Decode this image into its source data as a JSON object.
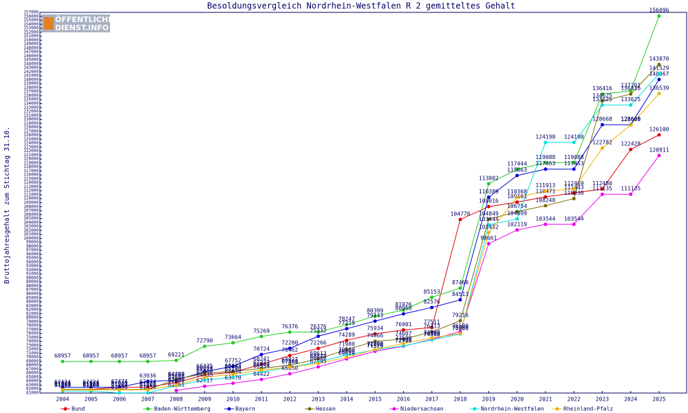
{
  "chart_data": {
    "type": "line",
    "title": "Besoldungsvergleich Nordrhein-Westfalen R 2 gemitteltes Gehalt",
    "y_label": "Bruttojahresgehalt zum Stichtag 31.10.",
    "watermark": [
      "ÖFFENTLICHER",
      "DIENST.INFO"
    ],
    "categories": [
      "2004",
      "2005",
      "2006",
      "2007",
      "2008",
      "2009",
      "2010",
      "2011",
      "2012",
      "2013",
      "2014",
      "2015",
      "2016",
      "2017",
      "2018",
      "2019",
      "2020",
      "2021",
      "2022",
      "2023",
      "2024",
      "2025"
    ],
    "ylim": [
      61000,
      157000
    ],
    "yticks": [
      61000,
      62000,
      63000,
      64000,
      65000,
      66000,
      67000,
      68000,
      69000,
      70000,
      71000,
      72000,
      73000,
      74000,
      75000,
      76000,
      77000,
      78000,
      79000,
      80000,
      81000,
      82000,
      83000,
      84000,
      85000,
      86000,
      87000,
      88000,
      89000,
      90000,
      91000,
      92000,
      93000,
      94000,
      95000,
      96000,
      97000,
      98000,
      99000,
      100000,
      101000,
      102000,
      103000,
      104000,
      105000,
      106000,
      107000,
      108000,
      109000,
      110000,
      111000,
      112000,
      113000,
      114000,
      115000,
      116000,
      117000,
      118000,
      119000,
      120000,
      121000,
      122000,
      123000,
      124000,
      125000,
      126000,
      127000,
      128000,
      129000,
      130000,
      131000,
      132000,
      133000,
      134000,
      135000,
      136000,
      137000,
      138000,
      139000,
      140000,
      141000,
      142000,
      143000,
      144000,
      145000,
      146000,
      147000,
      148000,
      149000,
      150000,
      151000,
      152000,
      153000,
      154000,
      155000,
      156000,
      157000
    ],
    "series": [
      {
        "name": "Bund",
        "color": "#e00000",
        "values": [
          61921,
          61921,
          62474,
          62474,
          63680,
          65525,
          66264,
          68241,
          70462,
          72266,
          74289,
          75934,
          76901,
          77511,
          104778,
          108016,
          109161,
          110471,
          111443,
          112480,
          122428,
          126100
        ]
      },
      {
        "name": "Baden-Württemberg",
        "color": "#22cc22",
        "values": [
          68957,
          68957,
          68957,
          68957,
          69221,
          72790,
          73664,
          75269,
          76376,
          76376,
          78247,
          80399,
          81926,
          85153,
          87460,
          113802,
          117444,
          119088,
          119088,
          136416,
          137201,
          156096
        ]
      },
      {
        "name": "Bayern",
        "color": "#0000dd",
        "values": [
          62424,
          62424,
          62474,
          63936,
          64233,
          66375,
          67752,
          70724,
          72280,
          75332,
          77219,
          79143,
          80960,
          82576,
          84513,
          110389,
          115863,
          117463,
          117463,
          128668,
          128668,
          140067
        ]
      },
      {
        "name": "Hessen",
        "color": "#7a6a00",
        "values": [
          61921,
          61921,
          61921,
          61921,
          64400,
          66004,
          66443,
          67223,
          68027,
          69613,
          71980,
          74066,
          74607,
          76413,
          79216,
          104849,
          106754,
          108248,
          110030,
          134625,
          136416,
          143870
        ]
      },
      {
        "name": "Niedersachsen",
        "color": "#ee00ee",
        "values": [
          null,
          null,
          null,
          null,
          61651,
          62717,
          63470,
          64422,
          65850,
          67595,
          69619,
          71526,
          72799,
          74560,
          76500,
          98661,
          102119,
          103544,
          103544,
          111135,
          111135,
          120911
        ]
      },
      {
        "name": "Nordrhein-Westfalen",
        "color": "#00dddd",
        "values": [
          61500,
          61500,
          61056,
          61056,
          62846,
          64235,
          65034,
          66354,
          67481,
          68877,
          70560,
          71890,
          72900,
          74400,
          75900,
          103444,
          104899,
          124198,
          124198,
          133625,
          133625,
          141529
        ]
      },
      {
        "name": "Rheinland-Pfalz",
        "color": "#f0b000",
        "values": [
          61800,
          61800,
          61800,
          61800,
          63000,
          65000,
          65700,
          66800,
          67500,
          68500,
          70000,
          72000,
          73500,
          74900,
          76000,
          101452,
          110368,
          111913,
          112469,
          122782,
          128600,
          136539
        ]
      }
    ]
  }
}
